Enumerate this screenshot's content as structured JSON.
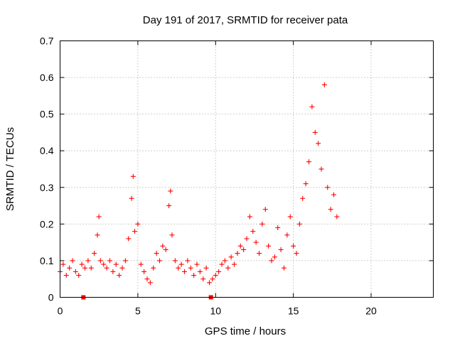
{
  "chart_data": {
    "type": "scatter",
    "title": "Day 191 of 2017, SRMTID for receiver pata",
    "xlabel": "GPS time / hours",
    "ylabel": "SRMTID / TECUs",
    "xlim": [
      0,
      24
    ],
    "ylim": [
      0,
      0.7
    ],
    "xticks": [
      0,
      5,
      10,
      15,
      20
    ],
    "yticks": [
      0,
      0.1,
      0.2,
      0.3,
      0.4,
      0.5,
      0.6,
      0.7
    ],
    "xtick_labels": [
      "0",
      "5",
      "10",
      "15",
      "20"
    ],
    "ytick_labels": [
      "0",
      "0.1",
      "0.2",
      "0.3",
      "0.4",
      "0.5",
      "0.6",
      "0.7"
    ],
    "grid": true,
    "marker": "+",
    "color": "#ff0000",
    "series": [
      {
        "name": "SRMTID",
        "x": [
          0.0,
          0.2,
          0.4,
          0.6,
          0.8,
          1.0,
          1.2,
          1.4,
          1.6,
          1.8,
          2.0,
          2.2,
          2.4,
          2.5,
          2.6,
          2.8,
          3.0,
          3.2,
          3.4,
          3.6,
          3.8,
          4.0,
          4.2,
          4.4,
          4.6,
          4.7,
          4.8,
          5.0,
          5.2,
          5.4,
          5.6,
          5.8,
          6.0,
          6.2,
          6.4,
          6.6,
          6.8,
          7.0,
          7.1,
          7.2,
          7.4,
          7.6,
          7.8,
          8.0,
          8.2,
          8.4,
          8.6,
          8.8,
          9.0,
          9.2,
          9.4,
          9.6,
          9.8,
          10.0,
          10.2,
          10.4,
          10.6,
          10.8,
          11.0,
          11.2,
          11.4,
          11.6,
          11.8,
          12.0,
          12.2,
          12.4,
          12.6,
          12.8,
          13.0,
          13.2,
          13.4,
          13.6,
          13.8,
          14.0,
          14.2,
          14.4,
          14.6,
          14.8,
          15.0,
          15.2,
          15.4,
          15.6,
          15.8,
          16.0,
          16.2,
          16.4,
          16.6,
          16.8,
          17.0,
          17.2,
          17.4,
          17.6,
          17.8
        ],
        "y": [
          0.07,
          0.09,
          0.06,
          0.08,
          0.1,
          0.07,
          0.06,
          0.09,
          0.08,
          0.1,
          0.08,
          0.12,
          0.17,
          0.22,
          0.1,
          0.09,
          0.08,
          0.1,
          0.07,
          0.09,
          0.06,
          0.08,
          0.1,
          0.16,
          0.27,
          0.33,
          0.18,
          0.2,
          0.09,
          0.07,
          0.05,
          0.04,
          0.08,
          0.12,
          0.1,
          0.14,
          0.13,
          0.25,
          0.29,
          0.17,
          0.1,
          0.08,
          0.09,
          0.07,
          0.1,
          0.08,
          0.06,
          0.09,
          0.07,
          0.05,
          0.08,
          0.04,
          0.05,
          0.06,
          0.07,
          0.09,
          0.1,
          0.08,
          0.11,
          0.09,
          0.12,
          0.14,
          0.13,
          0.16,
          0.22,
          0.18,
          0.15,
          0.12,
          0.2,
          0.24,
          0.14,
          0.1,
          0.11,
          0.19,
          0.13,
          0.08,
          0.17,
          0.22,
          0.14,
          0.12,
          0.2,
          0.27,
          0.31,
          0.37,
          0.52,
          0.45,
          0.42,
          0.35,
          0.58,
          0.3,
          0.24,
          0.28,
          0.22
        ]
      }
    ],
    "gap_markers_x": [
      1.5,
      9.7
    ]
  }
}
